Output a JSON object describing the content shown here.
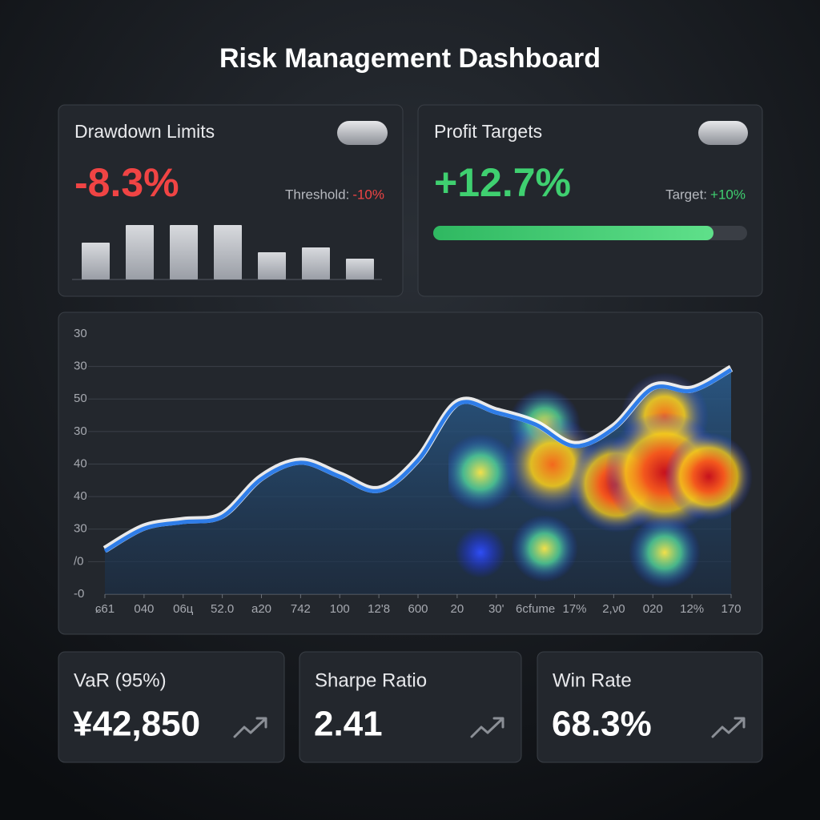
{
  "header": {
    "title": "Risk Management Dashboard"
  },
  "drawdown": {
    "label": "Drawdown Limits",
    "value": "-8.3%",
    "threshold_label": "Threshold:",
    "threshold_value": "-10%",
    "bars": {
      "type": "bar",
      "values": [
        46,
        68,
        68,
        68,
        34,
        40,
        26
      ],
      "ylim": [
        0,
        80
      ],
      "color": "#c9cbd1"
    }
  },
  "profit": {
    "label": "Profit Targets",
    "value": "+12.7%",
    "target_label": "Target:",
    "target_value": "+10%"
  },
  "chart_data": {
    "type": "line",
    "categories": [
      "ɕ61",
      "040",
      "06ц",
      "52.0",
      "a20",
      "742",
      "100",
      "12'8",
      "600",
      "20",
      "30'",
      "6cfume",
      "17%",
      "2,ν0",
      "020",
      "12%",
      "170"
    ],
    "y_labels": [
      "30",
      "30",
      "50",
      "30",
      "40",
      "40",
      "30",
      "/0",
      "-0"
    ],
    "series": [
      {
        "color": "#2f7de8",
        "values": [
          16.6,
          25.2,
          27.7,
          29.8,
          44.3,
          50.5,
          45.2,
          39.7,
          51.4,
          72.9,
          69.8,
          65.2,
          56.9,
          63.7,
          79.1,
          78.2,
          86.2
        ]
      }
    ],
    "ylim": [
      0,
      100
    ],
    "grid": true
  },
  "metrics": [
    {
      "label": "VaR (95%)",
      "value": "¥42,850"
    },
    {
      "label": "Sharpe Ratio",
      "value": "2.41"
    },
    {
      "label": "Win Rate",
      "value": "68.3%"
    }
  ]
}
